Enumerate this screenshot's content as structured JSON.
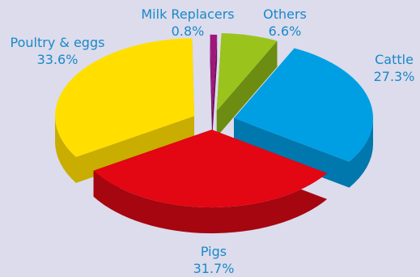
{
  "chart_data": {
    "type": "pie",
    "style": "3d-exploded",
    "slices": [
      {
        "label": "Others",
        "value": 6.6,
        "value_text": "6.6%",
        "color": "#9ac31c",
        "side_color": "#6d8c12"
      },
      {
        "label": "Cattle",
        "value": 27.3,
        "value_text": "27.3%",
        "color": "#009fe3",
        "side_color": "#0077ad"
      },
      {
        "label": "Pigs",
        "value": 31.7,
        "value_text": "31.7%",
        "color": "#e30613",
        "side_color": "#a6060f"
      },
      {
        "label": "Poultry & eggs",
        "value": 33.6,
        "value_text": "33.6%",
        "color": "#ffde00",
        "side_color": "#c9ad00"
      },
      {
        "label": "Milk Replacers",
        "value": 0.8,
        "value_text": "0.8%",
        "color": "#a0167c",
        "side_color": "#700f57"
      }
    ]
  }
}
